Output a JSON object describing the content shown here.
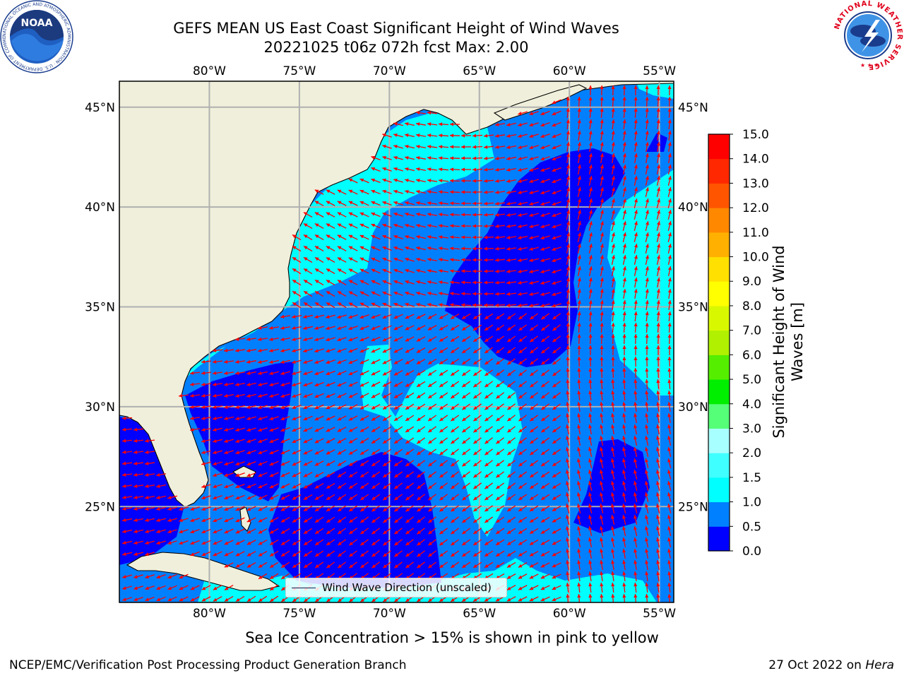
{
  "title": {
    "line1": "GEFS MEAN US East Coast Significant Height of Wind Waves",
    "line2": "20221025 t06z 072h fcst   Max: 2.00"
  },
  "map": {
    "lon_range": [
      -85,
      -54.2
    ],
    "lat_range": [
      20.2,
      46.3
    ],
    "lon_ticks": [
      -80,
      -75,
      -70,
      -65,
      -60,
      -55
    ],
    "lat_ticks": [
      25,
      30,
      35,
      40,
      45
    ],
    "lon_tick_labels": [
      "80°W",
      "75°W",
      "70°W",
      "65°W",
      "60°W",
      "55°W"
    ],
    "lat_tick_labels": [
      "25°N",
      "30°N",
      "35°N",
      "40°N",
      "45°N"
    ],
    "land_color": "#efefdb",
    "grid_color": "#b0b0b0",
    "arrow_color": "#ff0000",
    "legend": "Wind Wave Direction (unscaled)"
  },
  "colorbar": {
    "label": "Significant Height of Wind Waves [m]",
    "label_lines": [
      "Significant Height of Wind",
      "Waves [m]"
    ],
    "ticks": [
      "0.0",
      "0.5",
      "1.0",
      "1.5",
      "2.0",
      "3.0",
      "4.0",
      "5.0",
      "6.0",
      "7.0",
      "8.0",
      "9.0",
      "10.0",
      "11.0",
      "12.0",
      "13.0",
      "14.0",
      "15.0"
    ],
    "colors": [
      "#0000ff",
      "#0080ff",
      "#00ffff",
      "#40ffff",
      "#a8ffff",
      "#55ff77",
      "#00ee00",
      "#55ee00",
      "#b0f000",
      "#d8f800",
      "#ffff00",
      "#ffe000",
      "#ffb000",
      "#ff8800",
      "#ff5500",
      "#ff2800",
      "#ff0000"
    ]
  },
  "subtitle": "Sea Ice Concentration > 15% is shown in pink to yellow",
  "footer": {
    "left": "NCEP/EMC/Verification Post Processing Product Generation Branch",
    "right_date": "27 Oct 2022 on ",
    "right_machine": "Hera"
  },
  "logos": {
    "noaa_text": "NOAA",
    "noaa_ring_text": "NATIONAL OCEANIC AND ATMOSPHERIC ADMINISTRATION · U.S. DEPARTMENT OF COMMERCE",
    "nws_ring_text": "NATIONAL WEATHER SERVICE"
  }
}
